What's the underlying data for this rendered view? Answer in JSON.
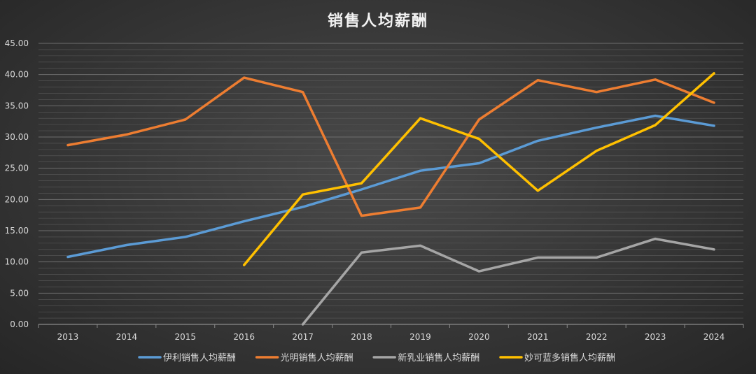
{
  "chart_data": {
    "type": "line",
    "title": "销售人均薪酬",
    "xlabel": "",
    "ylabel": "",
    "categories": [
      "2013",
      "2014",
      "2015",
      "2016",
      "2017",
      "2018",
      "2019",
      "2020",
      "2021",
      "2022",
      "2023",
      "2024"
    ],
    "ylim": [
      0,
      45
    ],
    "yticks": [
      "0.00",
      "5.00",
      "10.00",
      "15.00",
      "20.00",
      "25.00",
      "30.00",
      "35.00",
      "40.00",
      "45.00"
    ],
    "grid": true,
    "legend_position": "bottom",
    "series": [
      {
        "name": "伊利销售人均薪酬",
        "color": "#5b9bd5",
        "values": [
          10.8,
          12.7,
          14.0,
          16.5,
          18.8,
          21.6,
          24.6,
          25.8,
          29.4,
          31.5,
          33.4,
          31.8
        ]
      },
      {
        "name": "光明销售人均薪酬",
        "color": "#ed7d31",
        "values": [
          28.7,
          30.4,
          32.8,
          39.5,
          37.2,
          17.4,
          18.7,
          32.8,
          39.1,
          37.2,
          39.2,
          35.5
        ]
      },
      {
        "name": "新乳业销售人均薪酬",
        "color": "#a5a5a5",
        "values": [
          null,
          null,
          null,
          null,
          0.0,
          11.5,
          12.6,
          8.5,
          10.7,
          10.7,
          13.7,
          12.0
        ]
      },
      {
        "name": "妙可蓝多销售人均薪酬",
        "color": "#ffc000",
        "values": [
          null,
          null,
          null,
          9.5,
          20.8,
          22.6,
          33.0,
          29.7,
          21.4,
          27.8,
          31.9,
          40.2
        ]
      }
    ]
  }
}
